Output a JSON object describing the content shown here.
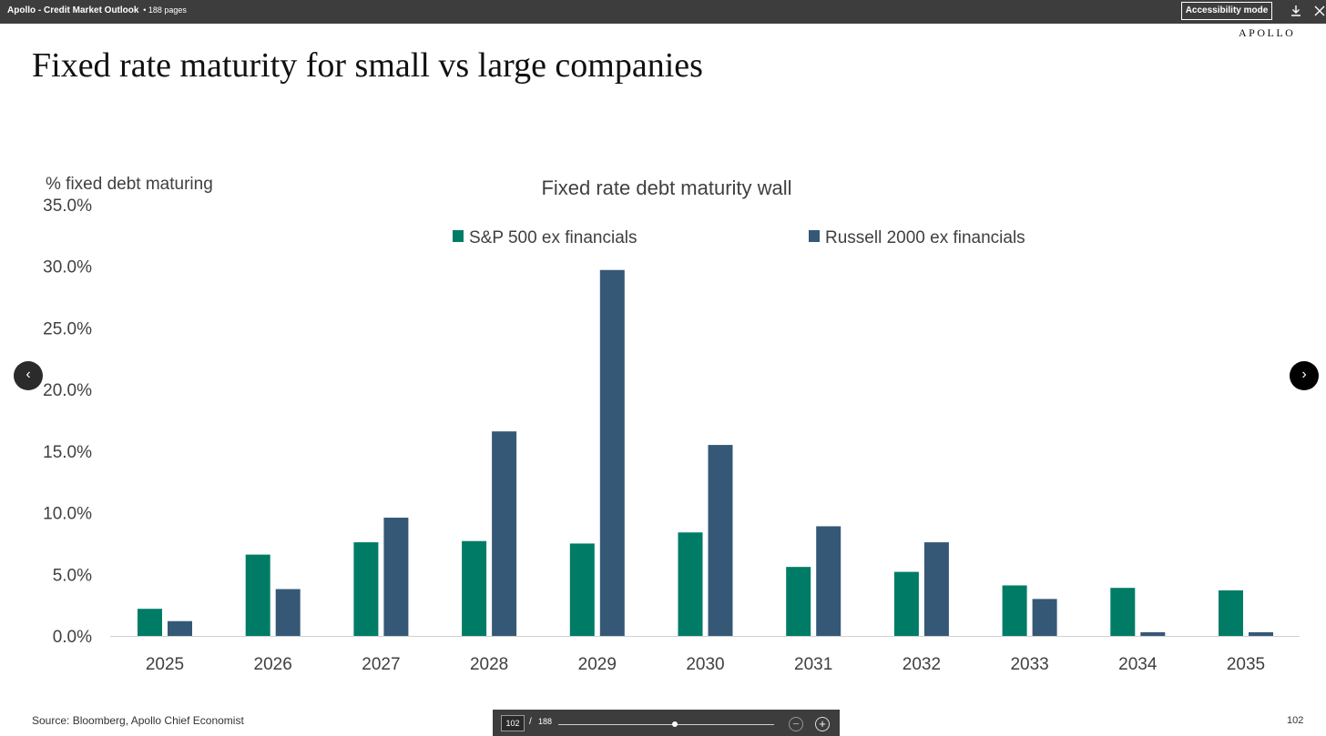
{
  "viewer": {
    "doc_title": "Apollo - Credit Market Outlook",
    "pages_label": "• 188 pages",
    "accessibility_label": "Accessibility mode",
    "download_icon": "download-icon",
    "close_icon": "close-icon"
  },
  "slide": {
    "brand": "APOLLO",
    "title": "Fixed rate maturity for small vs large companies",
    "source": "Source: Bloomberg, Apollo Chief Economist",
    "page_number": "102"
  },
  "nav": {
    "prev": "‹",
    "next": "›"
  },
  "pager": {
    "current": "102",
    "separator": "/",
    "total": "188",
    "progress": 0.54,
    "zoom_out": "−",
    "zoom_in": "+"
  },
  "colors": {
    "sp500": "#007C66",
    "russell": "#365877",
    "axis": "#d0d0d0"
  },
  "chart_data": {
    "type": "bar",
    "title": "Fixed rate debt maturity wall",
    "ylabel": "% fixed debt maturing",
    "xlabel": "",
    "ylim": [
      0,
      35
    ],
    "yticks": [
      "0.0%",
      "5.0%",
      "10.0%",
      "15.0%",
      "20.0%",
      "25.0%",
      "30.0%",
      "35.0%"
    ],
    "categories": [
      "2025",
      "2026",
      "2027",
      "2028",
      "2029",
      "2030",
      "2031",
      "2032",
      "2033",
      "2034",
      "2035"
    ],
    "series": [
      {
        "name": "S&P 500 ex financials",
        "values": [
          2.2,
          6.6,
          7.6,
          7.7,
          7.5,
          8.4,
          5.6,
          5.2,
          4.1,
          3.9,
          3.7
        ]
      },
      {
        "name": "Russell 2000 ex financials",
        "values": [
          1.2,
          3.8,
          9.6,
          16.6,
          29.7,
          15.5,
          8.9,
          7.6,
          3.0,
          0.3,
          0.3
        ]
      }
    ],
    "grid": false,
    "legend": "top-center"
  }
}
